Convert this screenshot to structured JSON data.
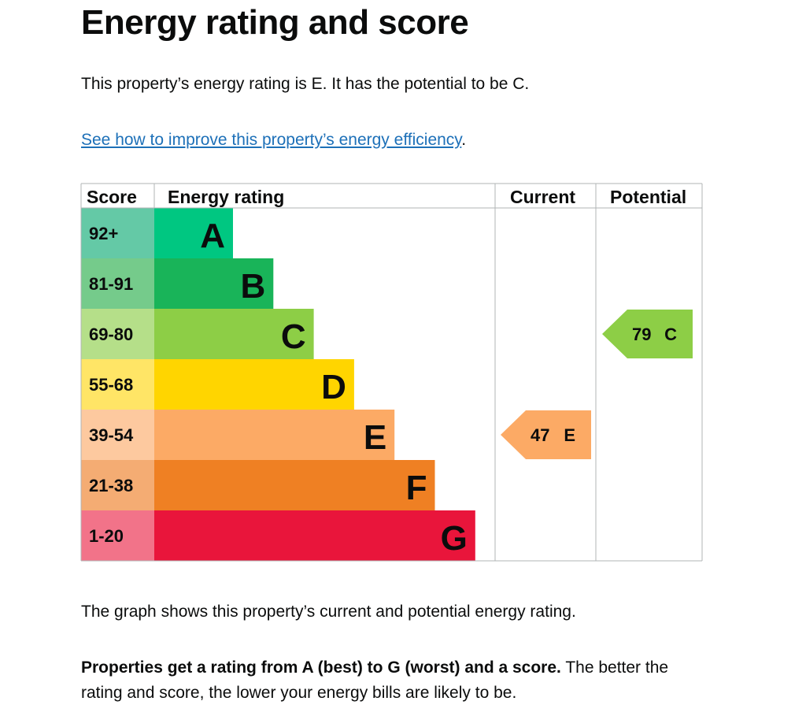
{
  "title": "Energy rating and score",
  "intro": "This property’s energy rating is E. It has the potential to be C.",
  "link_text": "See how to improve this property’s energy efficiency",
  "link_suffix": ".",
  "caption": "The graph shows this property’s current and potential energy rating.",
  "note_bold": "Properties get a rating from A (best) to G (worst) and a score.",
  "note_rest": " The better the rating and score, the lower your energy bills are likely to be.",
  "chart_data": {
    "type": "bar",
    "headers": [
      "Score",
      "Energy rating",
      "Current",
      "Potential"
    ],
    "categories": [
      "A",
      "B",
      "C",
      "D",
      "E",
      "F",
      "G"
    ],
    "score_ranges": [
      "92+",
      "81-91",
      "69-80",
      "55-68",
      "39-54",
      "21-38",
      "1-20"
    ],
    "colors": [
      "#00c781",
      "#19b459",
      "#8dce46",
      "#ffd500",
      "#fcaa65",
      "#ef8023",
      "#e9153b"
    ],
    "score_colors": [
      "#64c9a6",
      "#75cb8b",
      "#b5df89",
      "#ffe566",
      "#fdc99f",
      "#f4ac73",
      "#f27389"
    ],
    "current": {
      "score": 47,
      "rating": "E"
    },
    "potential": {
      "score": 79,
      "rating": "C"
    }
  }
}
